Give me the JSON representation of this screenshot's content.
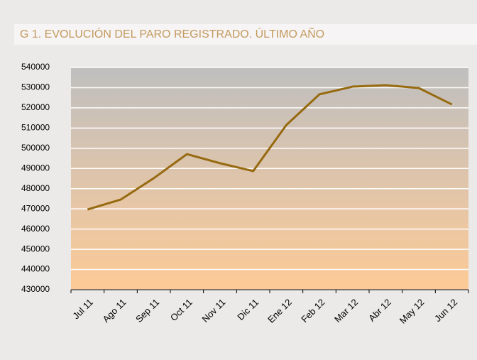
{
  "chart_data": {
    "type": "line",
    "title": "G 1. EVOLUCIÓN DEL PARO REGISTRADO. ÚLTIMO AÑO",
    "categories": [
      "Jul 11",
      "Ago 11",
      "Sep 11",
      "Oct 11",
      "Nov 11",
      "Dic 11",
      "Ene 12",
      "Feb 12",
      "Mar 12",
      "Abr 12",
      "May 12",
      "Jun 12"
    ],
    "values": [
      469700,
      474600,
      485200,
      497100,
      492600,
      488700,
      511500,
      526700,
      530500,
      531200,
      529800,
      521700
    ],
    "color": "#976a10",
    "ylim": [
      430000,
      540000
    ],
    "yticks": [
      430000,
      440000,
      450000,
      460000,
      470000,
      480000,
      490000,
      500000,
      510000,
      520000,
      530000,
      540000
    ],
    "grid": true
  }
}
